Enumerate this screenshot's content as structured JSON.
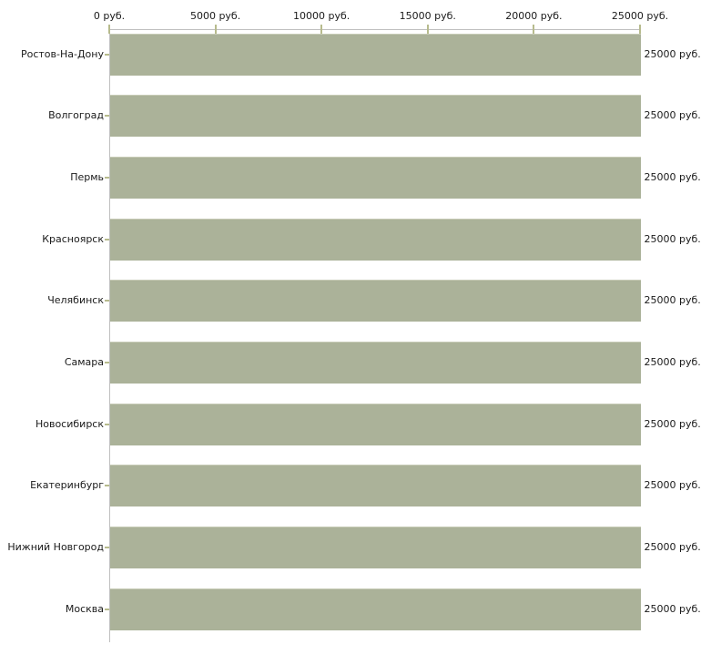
{
  "chart_data": {
    "type": "bar",
    "orientation": "horizontal",
    "title": "",
    "xlabel": "",
    "ylabel": "",
    "xlim": [
      0,
      25000
    ],
    "grid": false,
    "legend": null,
    "unit": "руб.",
    "categories": [
      "Ростов-На-Дону",
      "Волгоград",
      "Пермь",
      "Красноярск",
      "Челябинск",
      "Самара",
      "Новосибирск",
      "Екатеринбург",
      "Нижний Новгород",
      "Москва"
    ],
    "values": [
      25000,
      25000,
      25000,
      25000,
      25000,
      25000,
      25000,
      25000,
      25000,
      25000
    ],
    "bar_labels": [
      "25000 руб.",
      "25000 руб.",
      "25000 руб.",
      "25000 руб.",
      "25000 руб.",
      "25000 руб.",
      "25000 руб.",
      "25000 руб.",
      "25000 руб.",
      "25000 руб."
    ],
    "x_ticks": [
      0,
      5000,
      10000,
      15000,
      20000,
      25000
    ],
    "x_tick_labels": [
      "0 руб.",
      "5000 руб.",
      "10000 руб.",
      "15000 руб.",
      "20000 руб.",
      "25000 руб."
    ],
    "colors": {
      "bar": "#abb299",
      "bar_edge": "#c7cbb6",
      "axis": "#bfbfbf",
      "tick": "#b7bb8d",
      "text": "#1a1a1a",
      "background": "#ffffff"
    }
  }
}
